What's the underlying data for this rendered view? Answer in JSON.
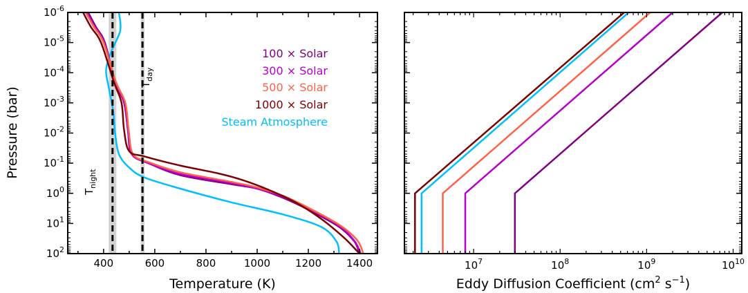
{
  "chart_data": [
    {
      "type": "line",
      "xlabel": "Temperature (K)",
      "ylabel": "Pressure (bar)",
      "xlim": [
        260,
        1470
      ],
      "ylim_bar": [
        1e-06,
        100
      ],
      "yscale": "log",
      "yaxis_inverted": true,
      "x_ticks": [
        400,
        600,
        800,
        1000,
        1200,
        1400
      ],
      "y_ticks": [
        {
          "exp": "-6",
          "value": 1e-06
        },
        {
          "exp": "-5",
          "value": 1e-05
        },
        {
          "exp": "-4",
          "value": 0.0001
        },
        {
          "exp": "-3",
          "value": 0.001
        },
        {
          "exp": "-2",
          "value": 0.01
        },
        {
          "exp": "-1",
          "value": 0.1
        },
        {
          "exp": "0",
          "value": 1
        },
        {
          "exp": "1",
          "value": 10
        },
        {
          "exp": "2",
          "value": 100
        }
      ],
      "tick_base": "10",
      "legend_position": "upper-right",
      "series": [
        {
          "name": "100 × Solar",
          "color": "#800080",
          "points": [
            [
              340,
              1e-06
            ],
            [
              370,
              3e-06
            ],
            [
              405,
              1e-05
            ],
            [
              445,
              0.0002
            ],
            [
              480,
              0.001
            ],
            [
              495,
              0.008
            ],
            [
              510,
              0.05
            ],
            [
              575,
              0.1
            ],
            [
              700,
              0.25
            ],
            [
              900,
              0.5
            ],
            [
              1000,
              0.7
            ],
            [
              1100,
              1.4
            ],
            [
              1200,
              3.5
            ],
            [
              1320,
              13
            ],
            [
              1380,
              40
            ],
            [
              1400,
              100
            ]
          ]
        },
        {
          "name": "300 × Solar",
          "color": "#b600c9",
          "points": [
            [
              335,
              1e-06
            ],
            [
              365,
              3e-06
            ],
            [
              402,
              1e-05
            ],
            [
              446,
              0.0002
            ],
            [
              482,
              0.001
            ],
            [
              495,
              0.008
            ],
            [
              510,
              0.05
            ],
            [
              575,
              0.1
            ],
            [
              700,
              0.23
            ],
            [
              900,
              0.46
            ],
            [
              1000,
              0.7
            ],
            [
              1100,
              1.3
            ],
            [
              1200,
              3.2
            ],
            [
              1320,
              12
            ],
            [
              1380,
              38
            ],
            [
              1405,
              100
            ]
          ]
        },
        {
          "name": "500 × Solar",
          "color": "#ff6248",
          "points": [
            [
              330,
              1e-06
            ],
            [
              362,
              3e-06
            ],
            [
              400,
              1e-05
            ],
            [
              448,
              0.0002
            ],
            [
              485,
              0.001
            ],
            [
              498,
              0.008
            ],
            [
              515,
              0.05
            ],
            [
              580,
              0.095
            ],
            [
              700,
              0.2
            ],
            [
              900,
              0.42
            ],
            [
              1000,
              0.64
            ],
            [
              1100,
              1.2
            ],
            [
              1200,
              3.0
            ],
            [
              1320,
              11
            ],
            [
              1390,
              35
            ],
            [
              1415,
              100
            ]
          ]
        },
        {
          "name": "1000 × Solar",
          "color": "#7b0000",
          "points": [
            [
              320,
              1e-06
            ],
            [
              350,
              3e-06
            ],
            [
              390,
              1e-05
            ],
            [
              440,
              0.0002
            ],
            [
              470,
              0.001
            ],
            [
              480,
              0.008
            ],
            [
              500,
              0.04
            ],
            [
              560,
              0.06
            ],
            [
              700,
              0.12
            ],
            [
              850,
              0.22
            ],
            [
              950,
              0.38
            ],
            [
              1050,
              0.8
            ],
            [
              1150,
              2.0
            ],
            [
              1250,
              7
            ],
            [
              1340,
              30
            ],
            [
              1400,
              100
            ]
          ]
        },
        {
          "name": "Steam Atmosphere",
          "color": "#00bfff",
          "points": [
            [
              460,
              1e-06
            ],
            [
              465,
              4e-06
            ],
            [
              430,
              2e-05
            ],
            [
              410,
              8e-05
            ],
            [
              420,
              0.0003
            ],
            [
              438,
              0.002
            ],
            [
              445,
              0.01
            ],
            [
              460,
              0.05
            ],
            [
              500,
              0.14
            ],
            [
              560,
              0.3
            ],
            [
              700,
              0.7
            ],
            [
              900,
              2
            ],
            [
              1100,
              5
            ],
            [
              1250,
              13
            ],
            [
              1310,
              40
            ],
            [
              1320,
              100
            ]
          ]
        }
      ],
      "vlines": [
        {
          "label": "T",
          "subscript": "night",
          "x": 435,
          "band": [
            420,
            450
          ]
        },
        {
          "label": "T",
          "subscript": "day",
          "x": 552,
          "band": [
            545,
            560
          ]
        }
      ]
    },
    {
      "type": "line",
      "xlabel": "Eddy Diffusion Coefficient (cm",
      "xlabel_sup1": "2",
      "xlabel_mid": " s",
      "xlabel_sup2": "−1",
      "xlabel_end": ")",
      "xscale": "log",
      "xlim_log10": [
        6.2,
        10.1
      ],
      "x_ticks": [
        {
          "exp": "7",
          "log": 7
        },
        {
          "exp": "8",
          "log": 8
        },
        {
          "exp": "9",
          "log": 9
        },
        {
          "exp": "10",
          "log": 10
        }
      ],
      "tick_base": "10",
      "yscale": "log",
      "yaxis_inverted": true,
      "series": [
        {
          "name": "1000 × Solar",
          "color": "#7b0000",
          "kzz_deep": 2100000.0,
          "kzz_top": 550000000.0
        },
        {
          "name": "Steam Atmosphere",
          "color": "#00bfff",
          "kzz_deep": 2500000.0,
          "kzz_top": 620000000.0
        },
        {
          "name": "500 × Solar",
          "color": "#ff6248",
          "kzz_deep": 4400000.0,
          "kzz_top": 1100000000.0
        },
        {
          "name": "300 × Solar",
          "color": "#b600c9",
          "kzz_deep": 8000000.0,
          "kzz_top": 2000000000.0
        },
        {
          "name": "100 × Solar",
          "color": "#800080",
          "kzz_deep": 30000000.0,
          "kzz_top": 7500000000.0
        }
      ]
    }
  ]
}
